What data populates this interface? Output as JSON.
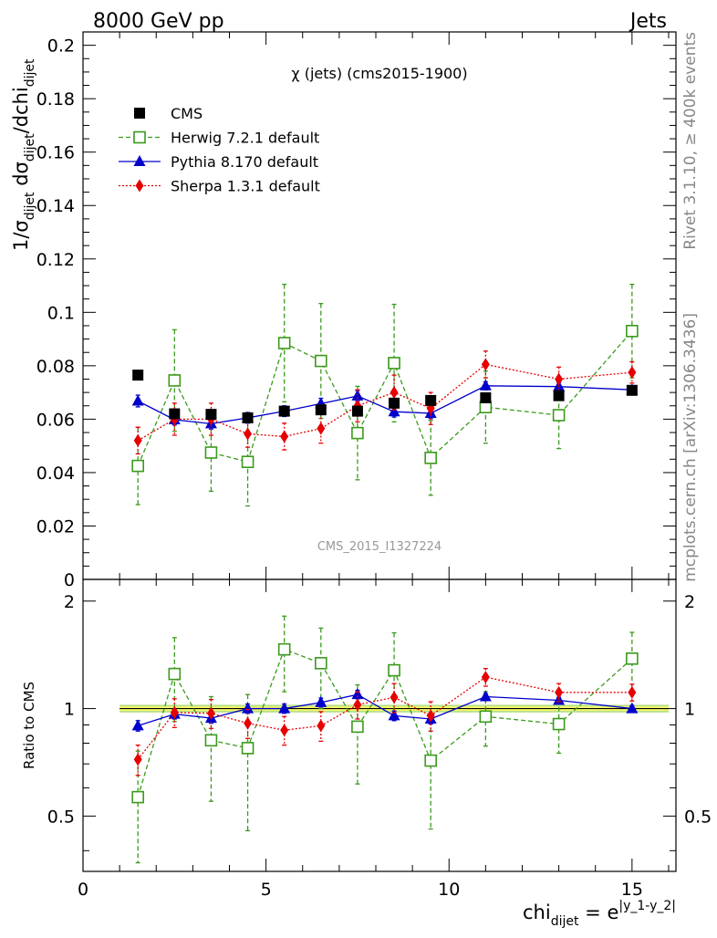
{
  "header": {
    "left": "8000 GeV pp",
    "right": "Jets",
    "side_top": "Rivet 3.1.10, ≥ 400k events",
    "side_bottom": "mcplots.cern.ch [arXiv:1306.3436]"
  },
  "chart_data": {
    "type": "scatter",
    "title": "χ (jets) (cms2015-1900)",
    "watermark": "CMS_2015_I1327224",
    "xlabel_main": "chi",
    "xlabel_sub": "dijet",
    "xlabel_eq": " = e",
    "xlabel_sup": "|y_1-y_2|",
    "ylabel_parts": {
      "a": "1/σ",
      "a_sub": "dijet",
      "b": " dσ",
      "b_sub": "dijet",
      "c": "/dchi",
      "c_sub": "dijet"
    },
    "ratio_ylabel": "Ratio to CMS",
    "xlim": [
      0,
      16.2
    ],
    "ylim": [
      0,
      0.205
    ],
    "ratio_ylim": [
      0.35,
      2.3
    ],
    "xticks": [
      0,
      5,
      10,
      15
    ],
    "xtick_labels": [
      "0",
      "5",
      "10",
      "15"
    ],
    "yticks": [
      0,
      0.02,
      0.04,
      0.06,
      0.08,
      0.1,
      0.12,
      0.14,
      0.16,
      0.18,
      0.2
    ],
    "ytick_labels": [
      "0",
      "0.02",
      "0.04",
      "0.06",
      "0.08",
      "0.1",
      "0.12",
      "0.14",
      "0.16",
      "0.18",
      "0.2"
    ],
    "ratio_yticks": [
      0.5,
      1,
      2
    ],
    "ratio_ytick_labels": [
      "0.5",
      "1",
      "2"
    ],
    "bin_edges": [
      1,
      2,
      3,
      4,
      5,
      6,
      7,
      8,
      9,
      10,
      12,
      14,
      16
    ],
    "x": [
      1.5,
      2.5,
      3.5,
      4.5,
      5.5,
      6.5,
      7.5,
      8.5,
      9.5,
      11,
      13,
      15
    ],
    "legend_placement": "top-left",
    "series": [
      {
        "name": "CMS",
        "color": "#000000",
        "marker": "square-filled",
        "line": "none",
        "values": [
          0.0765,
          0.062,
          0.0618,
          0.0605,
          0.063,
          0.0635,
          0.063,
          0.066,
          0.067,
          0.068,
          0.0688,
          0.0708
        ],
        "errors": [
          0.001,
          0.001,
          0.001,
          0.001,
          0.001,
          0.001,
          0.001,
          0.001,
          0.001,
          0.001,
          0.001,
          0.001
        ]
      },
      {
        "name": "Herwig 7.2.1 default",
        "color": "#3a9a1c",
        "marker": "square-open",
        "line": "dashed",
        "values": [
          0.0425,
          0.0745,
          0.0475,
          0.044,
          0.0885,
          0.0818,
          0.0548,
          0.081,
          0.0455,
          0.0645,
          0.0615,
          0.093
        ],
        "errors": [
          0.0145,
          0.019,
          0.0145,
          0.0165,
          0.022,
          0.0215,
          0.0175,
          0.022,
          0.014,
          0.0135,
          0.0125,
          0.0175
        ],
        "ratio": [
          0.565,
          1.25,
          0.815,
          0.775,
          1.465,
          1.34,
          0.89,
          1.28,
          0.715,
          0.95,
          0.905,
          1.38
        ],
        "ratio_errors": [
          0.195,
          0.33,
          0.265,
          0.32,
          0.35,
          0.34,
          0.275,
          0.35,
          0.255,
          0.165,
          0.155,
          0.255
        ]
      },
      {
        "name": "Pythia 8.170 default",
        "color": "#0000cc",
        "marker": "triangle-filled",
        "line": "solid",
        "values": [
          0.0668,
          0.0598,
          0.0583,
          0.0605,
          0.063,
          0.0658,
          0.0687,
          0.0628,
          0.0622,
          0.0725,
          0.0722,
          0.071
        ],
        "errors": [
          0.0022,
          0.002,
          0.002,
          0.002,
          0.002,
          0.002,
          0.002,
          0.002,
          0.002,
          0.0015,
          0.0015,
          0.0015
        ],
        "ratio": [
          0.895,
          0.965,
          0.94,
          1.0,
          1.0,
          1.04,
          1.095,
          0.955,
          0.935,
          1.08,
          1.055,
          1.0
        ],
        "ratio_errors": [
          0.03,
          0.03,
          0.03,
          0.03,
          0.03,
          0.03,
          0.03,
          0.03,
          0.03,
          0.02,
          0.02,
          0.02
        ]
      },
      {
        "name": "Sherpa 1.3.1 default",
        "color": "#e60000",
        "marker": "diamond-filled",
        "line": "dotted",
        "values": [
          0.052,
          0.06,
          0.06,
          0.0545,
          0.0535,
          0.0565,
          0.065,
          0.07,
          0.064,
          0.0805,
          0.075,
          0.0775
        ],
        "errors": [
          0.005,
          0.006,
          0.006,
          0.005,
          0.005,
          0.0055,
          0.006,
          0.0065,
          0.006,
          0.005,
          0.0045,
          0.004
        ],
        "ratio": [
          0.72,
          0.975,
          0.97,
          0.91,
          0.87,
          0.895,
          1.025,
          1.075,
          0.955,
          1.225,
          1.11,
          1.11
        ],
        "ratio_errors": [
          0.07,
          0.09,
          0.09,
          0.085,
          0.08,
          0.085,
          0.09,
          0.1,
          0.09,
          0.07,
          0.065,
          0.06
        ]
      }
    ]
  },
  "colors": {
    "band_inner": "#ffff66",
    "band_outer": "#bbe08a",
    "watermark": "#999999"
  }
}
